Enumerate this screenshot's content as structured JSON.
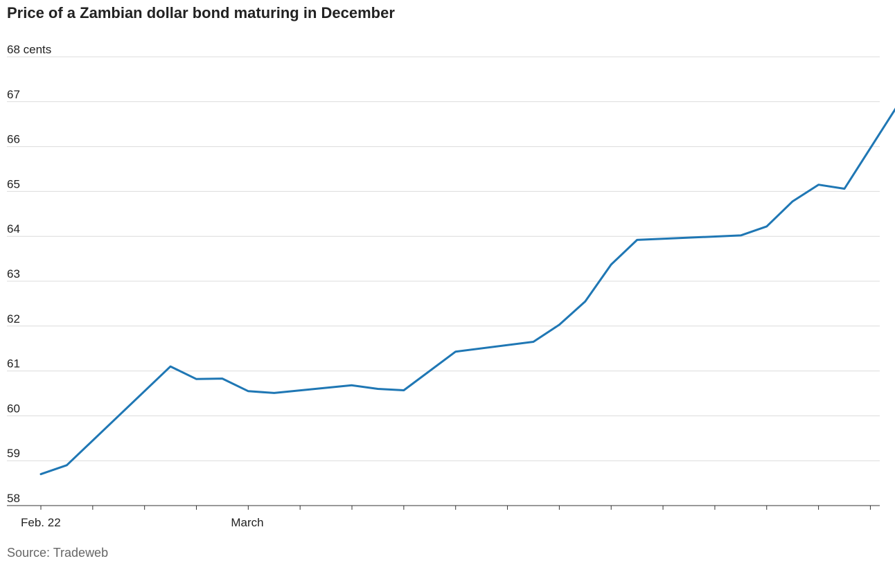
{
  "chart_data": {
    "type": "line",
    "title": "Price of a Zambian dollar bond maturing in December",
    "ylabel": "",
    "xlabel": "",
    "y_top_label": "68 cents",
    "yticks": [
      58,
      59,
      60,
      61,
      62,
      63,
      64,
      65,
      66,
      67,
      68
    ],
    "ylim": [
      58,
      68
    ],
    "x_tick_labels": [
      {
        "index": 0,
        "label": "Feb. 22"
      },
      {
        "index": 8,
        "label": "March"
      }
    ],
    "x_tick_count": 33,
    "grid": true,
    "series": [
      {
        "color": "#1f77b4",
        "values": [
          58.7,
          58.9,
          null,
          null,
          null,
          61.1,
          60.82,
          60.83,
          60.55,
          60.51,
          null,
          null,
          60.68,
          60.6,
          60.57,
          null,
          61.43,
          null,
          null,
          61.65,
          62.03,
          62.55,
          63.37,
          63.92,
          null,
          null,
          null,
          64.02,
          64.22,
          64.78,
          65.15,
          65.06,
          null,
          66.87
        ]
      }
    ],
    "source": "Source: Tradeweb"
  }
}
